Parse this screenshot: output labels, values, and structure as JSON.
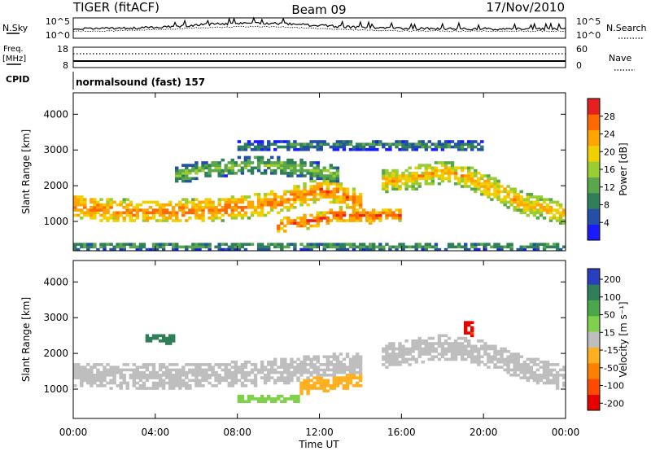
{
  "header": {
    "station": "TIGER (fitACF)",
    "beam": "Beam 09",
    "date": "17/Nov/2010"
  },
  "panels": {
    "nsky": {
      "label": "N.Sky",
      "ticks_left": [
        "10^5",
        "10^0"
      ],
      "ticks_right": [
        "10^5",
        "10^0"
      ],
      "right_label": "N.Search"
    },
    "freq": {
      "label_line1": "Freq.",
      "label_line2": "[MHz]",
      "ticks_left": [
        "18",
        "8"
      ],
      "ticks_right": [
        "60",
        "0"
      ],
      "right_label": "Nave"
    },
    "cpid": {
      "label": "CPID",
      "mode_text": "normalsound (fast) 157"
    }
  },
  "chart_data": [
    {
      "type": "heatmap",
      "name": "power",
      "xlabel": "Time UT",
      "ylabel": "Slant Range [km]",
      "xlim": [
        0,
        24
      ],
      "ylim": [
        180,
        4600
      ],
      "x_ticks": [
        "00:00",
        "04:00",
        "08:00",
        "12:00",
        "16:00",
        "20:00",
        "00:00"
      ],
      "y_ticks": [
        "1000",
        "2000",
        "3000",
        "4000"
      ],
      "y_tick_values": [
        1000,
        2000,
        3000,
        4000
      ],
      "colorbar": {
        "label": "Power [dB]",
        "tick_labels": [
          "4",
          "8",
          "12",
          "16",
          "20",
          "24",
          "28"
        ],
        "colors": [
          "#1a1aff",
          "#234fa8",
          "#2f7f5a",
          "#5aa64a",
          "#9acd32",
          "#f0d000",
          "#ffa500",
          "#ff6a00",
          "#e62020"
        ]
      },
      "echo_bands": [
        {
          "t": [
            0,
            2,
            4,
            6,
            8,
            9.5,
            11,
            12,
            13,
            14
          ],
          "r_center": [
            1450,
            1300,
            1280,
            1300,
            1380,
            1500,
            1700,
            1900,
            1800,
            1500
          ],
          "width": 650,
          "level": 20
        },
        {
          "t": [
            10,
            11.5,
            13,
            14.5,
            16
          ],
          "r_center": [
            900,
            1000,
            1200,
            1150,
            1200
          ],
          "width": 400,
          "level": 22
        },
        {
          "t": [
            15,
            16.5,
            18,
            19,
            20.5,
            22,
            24
          ],
          "r_center": [
            2100,
            2200,
            2400,
            2300,
            1900,
            1500,
            1200
          ],
          "width": 650,
          "level": 17
        },
        {
          "t": [
            5,
            7,
            9,
            11,
            13
          ],
          "r_center": [
            2300,
            2500,
            2600,
            2500,
            2300
          ],
          "width": 500,
          "level": 10
        },
        {
          "t": [
            8,
            12,
            16,
            20
          ],
          "r_center": [
            3100,
            3150,
            3150,
            3100
          ],
          "width": 300,
          "level": 6
        },
        {
          "t": [
            0,
            12,
            24
          ],
          "r_center": [
            320,
            320,
            320
          ],
          "width": 220,
          "level": 8
        }
      ]
    },
    {
      "type": "heatmap",
      "name": "velocity",
      "xlabel": "Time UT",
      "ylabel": "Slant Range [km]",
      "xlim": [
        0,
        24
      ],
      "ylim": [
        180,
        4600
      ],
      "x_ticks": [
        "00:00",
        "04:00",
        "08:00",
        "12:00",
        "16:00",
        "20:00",
        "00:00"
      ],
      "y_ticks": [
        "1000",
        "2000",
        "3000",
        "4000"
      ],
      "y_tick_values": [
        1000,
        2000,
        3000,
        4000
      ],
      "colorbar": {
        "label": "Velocity [m s⁻¹]",
        "tick_labels": [
          "200",
          "100",
          "50",
          "15",
          "-15",
          "-50",
          "-100",
          "-200"
        ],
        "colors": [
          "#2a3fbf",
          "#2f7f5a",
          "#4aa84a",
          "#7fd04a",
          "#bebebe",
          "#ffb020",
          "#ff8000",
          "#ff4a00",
          "#e60000"
        ]
      },
      "echo_bands": [
        {
          "t": [
            0,
            3,
            6,
            9,
            12,
            14
          ],
          "r_center": [
            1400,
            1350,
            1380,
            1450,
            1600,
            1700
          ],
          "width": 700,
          "level": 0
        },
        {
          "t": [
            15,
            18,
            20,
            22,
            24
          ],
          "r_center": [
            1900,
            2200,
            2000,
            1600,
            1300
          ],
          "width": 700,
          "level": 0
        },
        {
          "t": [
            8,
            9.5,
            11
          ],
          "r_center": [
            720,
            720,
            720
          ],
          "width": 250,
          "level": 25
        },
        {
          "t": [
            11,
            12.5,
            14
          ],
          "r_center": [
            1100,
            1200,
            1300
          ],
          "width": 500,
          "level": -40
        },
        {
          "t": [
            3.5,
            4.5,
            5
          ],
          "r_center": [
            2450,
            2400,
            2400
          ],
          "width": 250,
          "level": 150
        },
        {
          "t": [
            19,
            19.5
          ],
          "r_center": [
            2700,
            2700
          ],
          "width": 400,
          "level": -220
        }
      ]
    }
  ]
}
